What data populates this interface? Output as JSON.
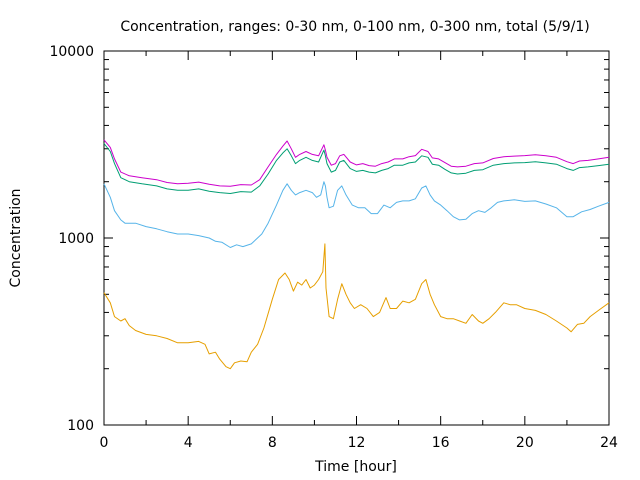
{
  "chart_data": {
    "type": "line",
    "title": "Concentration, ranges: 0-30 nm, 0-100 nm, 0-300 nm, total (5/9/1)",
    "xlabel": "Time [hour]",
    "ylabel": "Concentration",
    "xlim": [
      0,
      24
    ],
    "ylim": [
      100,
      10000
    ],
    "yscale": "log",
    "grid": false,
    "legend": "none",
    "x_ticks": [
      "0",
      "4",
      "8",
      "12",
      "16",
      "20",
      "24"
    ],
    "y_ticks": [
      "100",
      "1000",
      "10000"
    ],
    "x_tick_values": [
      0,
      4,
      8,
      12,
      16,
      20,
      24
    ],
    "y_tick_values": [
      100,
      1000,
      10000
    ],
    "x_minor_ticks": [
      2,
      6,
      10,
      14,
      18,
      22
    ],
    "series": [
      {
        "color": "#e69f00",
        "points": [
          [
            0,
            510
          ],
          [
            0.3,
            450
          ],
          [
            0.5,
            380
          ],
          [
            0.8,
            360
          ],
          [
            1.0,
            370
          ],
          [
            1.2,
            340
          ],
          [
            1.5,
            320
          ],
          [
            2,
            305
          ],
          [
            2.5,
            300
          ],
          [
            3,
            290
          ],
          [
            3.5,
            275
          ],
          [
            4,
            275
          ],
          [
            4.5,
            280
          ],
          [
            4.8,
            270
          ],
          [
            5,
            240
          ],
          [
            5.3,
            245
          ],
          [
            5.5,
            225
          ],
          [
            5.8,
            205
          ],
          [
            6,
            200
          ],
          [
            6.2,
            215
          ],
          [
            6.5,
            220
          ],
          [
            6.8,
            218
          ],
          [
            7,
            245
          ],
          [
            7.3,
            270
          ],
          [
            7.6,
            330
          ],
          [
            8,
            470
          ],
          [
            8.3,
            600
          ],
          [
            8.6,
            650
          ],
          [
            8.8,
            600
          ],
          [
            9,
            520
          ],
          [
            9.2,
            580
          ],
          [
            9.4,
            560
          ],
          [
            9.6,
            600
          ],
          [
            9.8,
            540
          ],
          [
            10,
            560
          ],
          [
            10.2,
            600
          ],
          [
            10.4,
            660
          ],
          [
            10.5,
            930
          ],
          [
            10.55,
            540
          ],
          [
            10.7,
            380
          ],
          [
            10.9,
            370
          ],
          [
            11.1,
            470
          ],
          [
            11.3,
            570
          ],
          [
            11.5,
            500
          ],
          [
            11.7,
            450
          ],
          [
            11.9,
            420
          ],
          [
            12.2,
            440
          ],
          [
            12.5,
            420
          ],
          [
            12.8,
            380
          ],
          [
            13.1,
            400
          ],
          [
            13.4,
            480
          ],
          [
            13.6,
            420
          ],
          [
            13.9,
            420
          ],
          [
            14.2,
            460
          ],
          [
            14.5,
            450
          ],
          [
            14.8,
            470
          ],
          [
            15.1,
            570
          ],
          [
            15.3,
            600
          ],
          [
            15.5,
            500
          ],
          [
            15.7,
            440
          ],
          [
            16,
            380
          ],
          [
            16.3,
            370
          ],
          [
            16.6,
            370
          ],
          [
            16.9,
            360
          ],
          [
            17.2,
            350
          ],
          [
            17.5,
            390
          ],
          [
            17.8,
            360
          ],
          [
            18,
            350
          ],
          [
            18.3,
            370
          ],
          [
            18.6,
            400
          ],
          [
            19,
            450
          ],
          [
            19.3,
            440
          ],
          [
            19.6,
            440
          ],
          [
            20,
            420
          ],
          [
            20.5,
            410
          ],
          [
            21,
            390
          ],
          [
            21.5,
            360
          ],
          [
            22,
            330
          ],
          [
            22.2,
            315
          ],
          [
            22.5,
            345
          ],
          [
            22.8,
            350
          ],
          [
            23.1,
            380
          ],
          [
            23.5,
            410
          ],
          [
            24,
            450
          ]
        ]
      },
      {
        "color": "#56b4e9",
        "points": [
          [
            0,
            1950
          ],
          [
            0.3,
            1650
          ],
          [
            0.5,
            1400
          ],
          [
            0.8,
            1250
          ],
          [
            1.0,
            1200
          ],
          [
            1.5,
            1200
          ],
          [
            2,
            1150
          ],
          [
            2.5,
            1120
          ],
          [
            3,
            1080
          ],
          [
            3.5,
            1050
          ],
          [
            4,
            1050
          ],
          [
            4.5,
            1030
          ],
          [
            5,
            1000
          ],
          [
            5.3,
            960
          ],
          [
            5.6,
            950
          ],
          [
            6,
            890
          ],
          [
            6.3,
            920
          ],
          [
            6.6,
            900
          ],
          [
            7,
            930
          ],
          [
            7.5,
            1050
          ],
          [
            7.8,
            1200
          ],
          [
            8.2,
            1500
          ],
          [
            8.5,
            1800
          ],
          [
            8.7,
            1950
          ],
          [
            8.9,
            1800
          ],
          [
            9.1,
            1700
          ],
          [
            9.3,
            1750
          ],
          [
            9.6,
            1800
          ],
          [
            9.9,
            1750
          ],
          [
            10.1,
            1650
          ],
          [
            10.3,
            1700
          ],
          [
            10.45,
            2000
          ],
          [
            10.52,
            1900
          ],
          [
            10.6,
            1650
          ],
          [
            10.7,
            1450
          ],
          [
            10.9,
            1480
          ],
          [
            11.1,
            1800
          ],
          [
            11.3,
            1900
          ],
          [
            11.5,
            1700
          ],
          [
            11.8,
            1500
          ],
          [
            12.1,
            1450
          ],
          [
            12.4,
            1450
          ],
          [
            12.7,
            1350
          ],
          [
            13,
            1350
          ],
          [
            13.3,
            1500
          ],
          [
            13.6,
            1450
          ],
          [
            13.9,
            1550
          ],
          [
            14.2,
            1580
          ],
          [
            14.5,
            1580
          ],
          [
            14.8,
            1620
          ],
          [
            15.1,
            1850
          ],
          [
            15.3,
            1900
          ],
          [
            15.5,
            1700
          ],
          [
            15.7,
            1580
          ],
          [
            16,
            1500
          ],
          [
            16.3,
            1400
          ],
          [
            16.6,
            1300
          ],
          [
            16.9,
            1250
          ],
          [
            17.2,
            1260
          ],
          [
            17.5,
            1350
          ],
          [
            17.8,
            1400
          ],
          [
            18.1,
            1370
          ],
          [
            18.4,
            1450
          ],
          [
            18.7,
            1550
          ],
          [
            19,
            1580
          ],
          [
            19.5,
            1600
          ],
          [
            20,
            1570
          ],
          [
            20.5,
            1580
          ],
          [
            21,
            1520
          ],
          [
            21.5,
            1450
          ],
          [
            22,
            1300
          ],
          [
            22.3,
            1300
          ],
          [
            22.7,
            1380
          ],
          [
            23.1,
            1420
          ],
          [
            23.5,
            1480
          ],
          [
            24,
            1550
          ]
        ]
      },
      {
        "color": "#009e73",
        "points": [
          [
            0,
            3200
          ],
          [
            0.3,
            2900
          ],
          [
            0.5,
            2500
          ],
          [
            0.8,
            2100
          ],
          [
            1.2,
            2000
          ],
          [
            1.8,
            1950
          ],
          [
            2.5,
            1900
          ],
          [
            3,
            1830
          ],
          [
            3.5,
            1800
          ],
          [
            4,
            1800
          ],
          [
            4.5,
            1830
          ],
          [
            5,
            1780
          ],
          [
            5.5,
            1750
          ],
          [
            6,
            1730
          ],
          [
            6.5,
            1770
          ],
          [
            7,
            1760
          ],
          [
            7.4,
            1900
          ],
          [
            7.8,
            2200
          ],
          [
            8.2,
            2600
          ],
          [
            8.5,
            2850
          ],
          [
            8.7,
            3000
          ],
          [
            8.9,
            2750
          ],
          [
            9.1,
            2500
          ],
          [
            9.3,
            2600
          ],
          [
            9.6,
            2700
          ],
          [
            9.9,
            2600
          ],
          [
            10.2,
            2550
          ],
          [
            10.45,
            2950
          ],
          [
            10.52,
            2750
          ],
          [
            10.6,
            2500
          ],
          [
            10.8,
            2250
          ],
          [
            11,
            2300
          ],
          [
            11.2,
            2550
          ],
          [
            11.4,
            2600
          ],
          [
            11.7,
            2350
          ],
          [
            12,
            2270
          ],
          [
            12.3,
            2300
          ],
          [
            12.6,
            2250
          ],
          [
            12.9,
            2230
          ],
          [
            13.2,
            2300
          ],
          [
            13.5,
            2350
          ],
          [
            13.8,
            2450
          ],
          [
            14.2,
            2450
          ],
          [
            14.5,
            2520
          ],
          [
            14.8,
            2550
          ],
          [
            15.1,
            2750
          ],
          [
            15.4,
            2700
          ],
          [
            15.6,
            2480
          ],
          [
            15.9,
            2450
          ],
          [
            16.2,
            2330
          ],
          [
            16.5,
            2230
          ],
          [
            16.8,
            2200
          ],
          [
            17.2,
            2220
          ],
          [
            17.6,
            2300
          ],
          [
            18,
            2320
          ],
          [
            18.5,
            2450
          ],
          [
            19,
            2500
          ],
          [
            19.5,
            2520
          ],
          [
            20,
            2530
          ],
          [
            20.5,
            2560
          ],
          [
            21,
            2520
          ],
          [
            21.5,
            2480
          ],
          [
            22,
            2350
          ],
          [
            22.3,
            2300
          ],
          [
            22.6,
            2380
          ],
          [
            23,
            2400
          ],
          [
            23.5,
            2440
          ],
          [
            24,
            2480
          ]
        ]
      },
      {
        "color": "#cc00cc",
        "points": [
          [
            0,
            3350
          ],
          [
            0.3,
            3050
          ],
          [
            0.5,
            2650
          ],
          [
            0.8,
            2250
          ],
          [
            1.2,
            2150
          ],
          [
            1.8,
            2100
          ],
          [
            2.5,
            2050
          ],
          [
            3,
            1980
          ],
          [
            3.5,
            1950
          ],
          [
            4,
            1960
          ],
          [
            4.5,
            1990
          ],
          [
            5,
            1940
          ],
          [
            5.5,
            1900
          ],
          [
            6,
            1890
          ],
          [
            6.5,
            1930
          ],
          [
            7,
            1920
          ],
          [
            7.4,
            2050
          ],
          [
            7.8,
            2400
          ],
          [
            8.2,
            2800
          ],
          [
            8.5,
            3100
          ],
          [
            8.7,
            3300
          ],
          [
            8.9,
            3000
          ],
          [
            9.1,
            2700
          ],
          [
            9.3,
            2800
          ],
          [
            9.6,
            2900
          ],
          [
            9.9,
            2800
          ],
          [
            10.2,
            2750
          ],
          [
            10.45,
            3150
          ],
          [
            10.52,
            2950
          ],
          [
            10.6,
            2700
          ],
          [
            10.8,
            2450
          ],
          [
            11,
            2500
          ],
          [
            11.2,
            2750
          ],
          [
            11.4,
            2800
          ],
          [
            11.7,
            2550
          ],
          [
            12,
            2460
          ],
          [
            12.3,
            2500
          ],
          [
            12.6,
            2440
          ],
          [
            12.9,
            2420
          ],
          [
            13.2,
            2500
          ],
          [
            13.5,
            2550
          ],
          [
            13.8,
            2650
          ],
          [
            14.2,
            2650
          ],
          [
            14.5,
            2720
          ],
          [
            14.8,
            2760
          ],
          [
            15.1,
            2980
          ],
          [
            15.4,
            2900
          ],
          [
            15.6,
            2680
          ],
          [
            15.9,
            2650
          ],
          [
            16.2,
            2530
          ],
          [
            16.5,
            2420
          ],
          [
            16.8,
            2400
          ],
          [
            17.2,
            2420
          ],
          [
            17.6,
            2500
          ],
          [
            18,
            2520
          ],
          [
            18.5,
            2660
          ],
          [
            19,
            2720
          ],
          [
            19.5,
            2740
          ],
          [
            20,
            2760
          ],
          [
            20.5,
            2790
          ],
          [
            21,
            2750
          ],
          [
            21.5,
            2700
          ],
          [
            22,
            2560
          ],
          [
            22.3,
            2500
          ],
          [
            22.6,
            2580
          ],
          [
            23,
            2600
          ],
          [
            23.5,
            2650
          ],
          [
            24,
            2700
          ]
        ]
      }
    ]
  }
}
